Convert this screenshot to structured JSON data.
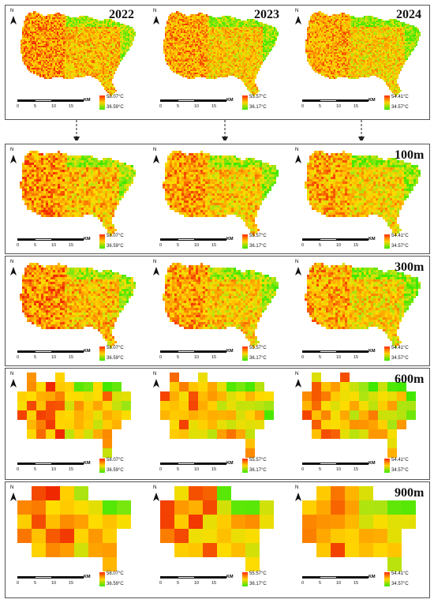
{
  "year_labels": [
    "2022",
    "2023",
    "2024"
  ],
  "resolution_labels": [
    "100m",
    "300m",
    "600m",
    "900m"
  ],
  "north_label": "N",
  "scale": {
    "ticks": [
      "0",
      "5",
      "10",
      "15"
    ],
    "unit": "KM"
  },
  "legends": [
    {
      "max": "58.07°C",
      "min": "36.59°C"
    },
    {
      "max": "55.57°C",
      "min": "36.17°C"
    },
    {
      "max": "54.41°C",
      "min": "34.57°C"
    }
  ],
  "colors": {
    "high": "#ff2a00",
    "mid": "#ffd400",
    "low": "#3ee800"
  }
}
